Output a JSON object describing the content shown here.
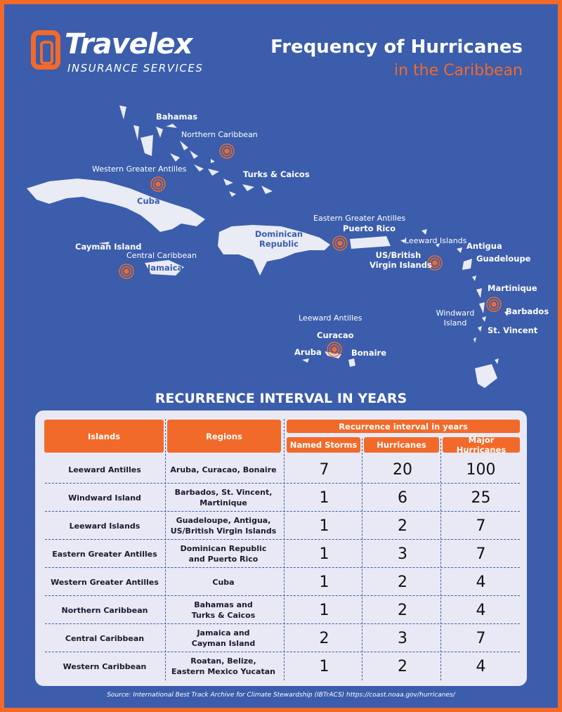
{
  "brand": {
    "name": "Travelex",
    "tagline": "INSURANCE SERVICES"
  },
  "title": {
    "line1": "Frequency of Hurricanes",
    "line2": "in the Caribbean"
  },
  "colors": {
    "background": "#3b5dab",
    "accent": "#f26a2a",
    "land": "#e9ebf5",
    "card": "#e8e9f4"
  },
  "map": {
    "labels": {
      "bahamas": "Bahamas",
      "northern_caribbean": "Northern Caribbean",
      "western_greater_antilles": "Western Greater Antilles",
      "turks_caicos": "Turks & Caicos",
      "cuba": "Cuba",
      "cayman": "Cayman Island",
      "central_caribbean": "Central Caribbean",
      "jamaica": "Jamaica",
      "dominican_1": "Dominican",
      "dominican_2": "Republic",
      "eastern_greater_antilles": "Eastern Greater Antilles",
      "puerto_rico": "Puerto Rico",
      "leeward_islands": "Leeward Islands",
      "virgin_1": "US/British",
      "virgin_2": "Virgin Islands",
      "antigua": "Antigua",
      "guadeloupe": "Guadeloupe",
      "martinique": "Martinique",
      "barbados": "Barbados",
      "windward_1": "Windward",
      "windward_2": "Island",
      "st_vincent": "St. Vincent",
      "leeward_antilles": "Leeward Antilles",
      "curacao": "Curacao",
      "aruba": "Aruba",
      "bonaire": "Bonaire"
    },
    "marker_icon": "hurricane-target-icon"
  },
  "table": {
    "title": "RECURRENCE INTERVAL IN YEARS",
    "headers": {
      "islands": "Islands",
      "regions": "Regions",
      "recurrence": "Recurrence interval in years",
      "named": "Named Storms",
      "hurricanes": "Hurricanes",
      "major": "Major Hurricanes"
    },
    "rows": [
      {
        "island": "Leeward Antilles",
        "region": "Aruba, Curacao, Bonaire",
        "named": "7",
        "hurricanes": "20",
        "major": "100"
      },
      {
        "island": "Windward Island",
        "region": "Barbados, St. Vincent,\nMartinique",
        "named": "1",
        "hurricanes": "6",
        "major": "25"
      },
      {
        "island": "Leeward Islands",
        "region": "Guadeloupe, Antigua,\nUS/British Virgin Islands",
        "named": "1",
        "hurricanes": "2",
        "major": "7"
      },
      {
        "island": "Eastern Greater Antilles",
        "region": "Dominican Republic\nand Puerto Rico",
        "named": "1",
        "hurricanes": "3",
        "major": "7"
      },
      {
        "island": "Western Greater Antilles",
        "region": "Cuba",
        "named": "1",
        "hurricanes": "2",
        "major": "4"
      },
      {
        "island": "Northern Caribbean",
        "region": "Bahamas and\nTurks & Caicos",
        "named": "1",
        "hurricanes": "2",
        "major": "4"
      },
      {
        "island": "Central Caribbean",
        "region": "Jamaica and\nCayman Island",
        "named": "2",
        "hurricanes": "3",
        "major": "7"
      },
      {
        "island": "Western Caribbean",
        "region": "Roatan, Belize,\nEastern Mexico Yucatan",
        "named": "1",
        "hurricanes": "2",
        "major": "4"
      }
    ]
  },
  "source": "Source: International Best Track Archive for Climate Stewardship (IBTrACS) https://coast.noaa.gov/hurricanes/"
}
